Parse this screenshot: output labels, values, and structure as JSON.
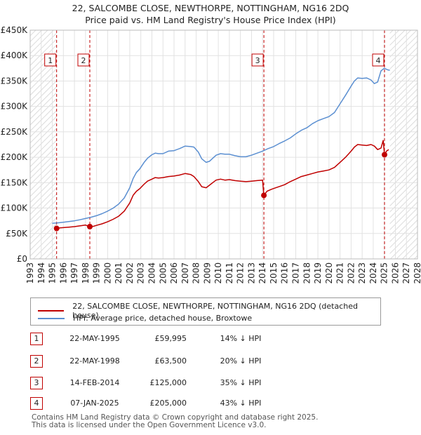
{
  "title_line1": "22, SALCOMBE CLOSE, NEWTHORPE, NOTTINGHAM, NG16 2DQ",
  "title_line2": "Price paid vs. HM Land Registry's House Price Index (HPI)",
  "chart_data": {
    "type": "line",
    "xlim": [
      1993,
      2028
    ],
    "ylim": [
      0,
      450000
    ],
    "x_ticks": [
      "1993",
      "1994",
      "1995",
      "1996",
      "1997",
      "1998",
      "1999",
      "2000",
      "2001",
      "2002",
      "2003",
      "2004",
      "2005",
      "2006",
      "2007",
      "2008",
      "2009",
      "2010",
      "2011",
      "2012",
      "2013",
      "2014",
      "2015",
      "2016",
      "2017",
      "2018",
      "2019",
      "2020",
      "2021",
      "2022",
      "2023",
      "2024",
      "2025",
      "2026",
      "2027",
      "2028"
    ],
    "y_ticks": [
      {
        "value": 0,
        "label": "£0"
      },
      {
        "value": 50000,
        "label": "£50K"
      },
      {
        "value": 100000,
        "label": "£100K"
      },
      {
        "value": 150000,
        "label": "£150K"
      },
      {
        "value": 200000,
        "label": "£200K"
      },
      {
        "value": 250000,
        "label": "£250K"
      },
      {
        "value": 300000,
        "label": "£300K"
      },
      {
        "value": 350000,
        "label": "£350K"
      },
      {
        "value": 400000,
        "label": "£400K"
      },
      {
        "value": 450000,
        "label": "£450K"
      }
    ],
    "grid": true,
    "hatched_regions": [
      [
        1993,
        1995.39
      ],
      [
        2025.5,
        2028
      ]
    ],
    "series": [
      {
        "name": "22, SALCOMBE CLOSE, NEWTHORPE, NOTTINGHAM, NG16 2DQ (detached house)",
        "color": "#c00000",
        "x": [
          1995.39,
          1995.7,
          1996,
          1996.5,
          1997,
          1997.5,
          1998.0,
          1998.39,
          1998.39,
          1998.7,
          1999,
          1999.5,
          2000,
          2000.5,
          2001,
          2001.5,
          2002,
          2002.3,
          2002.6,
          2002.9,
          2003.3,
          2003.6,
          2004,
          2004.3,
          2004.6,
          2005,
          2005.5,
          2006,
          2006.5,
          2007,
          2007.5,
          2007.8,
          2008.2,
          2008.5,
          2008.9,
          2009.2,
          2009.5,
          2009.8,
          2010.2,
          2010.6,
          2011,
          2011.5,
          2012,
          2012.5,
          2013,
          2013.5,
          2014.0,
          2014.12,
          2014.12,
          2014.4,
          2014.8,
          2015.2,
          2015.6,
          2016,
          2016.5,
          2017,
          2017.5,
          2018,
          2018.5,
          2019,
          2019.5,
          2020,
          2020.5,
          2021,
          2021.5,
          2022,
          2022.3,
          2022.6,
          2023,
          2023.4,
          2023.8,
          2024.1,
          2024.4,
          2024.7,
          2024.9,
          2025.02,
          2025.02,
          2025.2,
          2025.4
        ],
        "y": [
          59995,
          61000,
          61500,
          62500,
          63500,
          65000,
          66500,
          63500,
          63500,
          64000,
          66000,
          69000,
          73000,
          78000,
          84000,
          94000,
          110000,
          125000,
          133000,
          138000,
          147000,
          153000,
          157000,
          160000,
          159000,
          160000,
          162000,
          163000,
          165000,
          168000,
          166000,
          162000,
          152000,
          142000,
          140000,
          145000,
          150000,
          155000,
          157000,
          155000,
          156000,
          154000,
          153000,
          152000,
          153000,
          154000,
          155000,
          125000,
          125000,
          133000,
          137000,
          140000,
          143000,
          146000,
          152000,
          157000,
          162000,
          165000,
          168000,
          171000,
          173000,
          175000,
          180000,
          190000,
          200000,
          212000,
          220000,
          225000,
          224000,
          223000,
          225000,
          222000,
          215000,
          218000,
          233000,
          205000,
          205000,
          212000,
          215000
        ]
      },
      {
        "name": "HPI: Average price, detached house, Broxtowe",
        "color": "#5b8fd1",
        "x": [
          1995,
          1995.5,
          1996,
          1996.5,
          1997,
          1997.5,
          1998,
          1998.5,
          1999,
          1999.5,
          2000,
          2000.5,
          2001,
          2001.5,
          2002,
          2002.3,
          2002.6,
          2002.9,
          2003.3,
          2003.6,
          2004,
          2004.3,
          2004.6,
          2005,
          2005.5,
          2006,
          2006.5,
          2007,
          2007.5,
          2007.8,
          2008.2,
          2008.5,
          2008.9,
          2009.2,
          2009.5,
          2009.8,
          2010.2,
          2010.6,
          2011,
          2011.5,
          2012,
          2012.5,
          2013,
          2013.5,
          2014,
          2014.5,
          2015,
          2015.5,
          2016,
          2016.5,
          2017,
          2017.5,
          2018,
          2018.5,
          2019,
          2019.5,
          2020,
          2020.5,
          2021,
          2021.5,
          2022,
          2022.3,
          2022.6,
          2023,
          2023.4,
          2023.8,
          2024.1,
          2024.4,
          2024.7,
          2025,
          2025.3,
          2025.5
        ],
        "y": [
          70000,
          71000,
          72000,
          73500,
          75000,
          77000,
          79500,
          82000,
          85000,
          89000,
          94000,
          100000,
          108000,
          120000,
          140000,
          158000,
          170000,
          177000,
          190000,
          198000,
          205000,
          208000,
          207000,
          207000,
          212000,
          213000,
          217000,
          222000,
          221000,
          220000,
          210000,
          197000,
          190000,
          192000,
          198000,
          204000,
          207000,
          206000,
          206000,
          203000,
          201000,
          201000,
          204000,
          208000,
          212000,
          217000,
          221000,
          227000,
          232000,
          238000,
          246000,
          253000,
          258000,
          266000,
          272000,
          276000,
          280000,
          288000,
          305000,
          322000,
          340000,
          350000,
          356000,
          355000,
          356000,
          352000,
          345000,
          348000,
          370000,
          375000,
          372000,
          371000
        ]
      }
    ],
    "sales": [
      {
        "label": "1",
        "x": 1995.39,
        "y": 59995
      },
      {
        "label": "2",
        "x": 1998.39,
        "y": 63500
      },
      {
        "label": "3",
        "x": 2014.12,
        "y": 125000
      },
      {
        "label": "4",
        "x": 2025.02,
        "y": 205000
      }
    ]
  },
  "legend": {
    "property_label": "22, SALCOMBE CLOSE, NEWTHORPE, NOTTINGHAM, NG16 2DQ (detached house)",
    "hpi_label": "HPI: Average price, detached house, Broxtowe",
    "property_color": "#c00000",
    "hpi_color": "#5b8fd1"
  },
  "sales_table": [
    {
      "num": "1",
      "date": "22-MAY-1995",
      "price": "£59,995",
      "hpi": "14% ↓ HPI"
    },
    {
      "num": "2",
      "date": "22-MAY-1998",
      "price": "£63,500",
      "hpi": "20% ↓ HPI"
    },
    {
      "num": "3",
      "date": "14-FEB-2014",
      "price": "£125,000",
      "hpi": "35% ↓ HPI"
    },
    {
      "num": "4",
      "date": "07-JAN-2025",
      "price": "£205,000",
      "hpi": "43% ↓ HPI"
    }
  ],
  "footer_line1": "Contains HM Land Registry data © Crown copyright and database right 2025.",
  "footer_line2": "This data is licensed under the Open Government Licence v3.0."
}
